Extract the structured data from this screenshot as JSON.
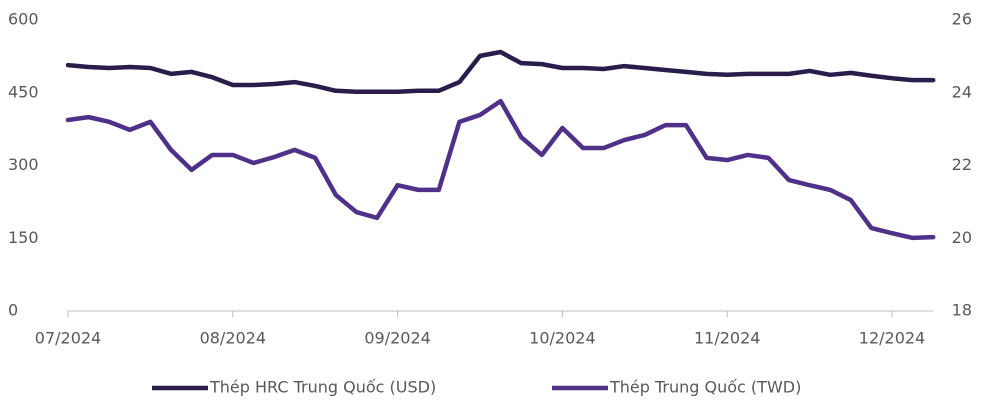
{
  "chart_data": {
    "type": "line",
    "categories": [
      "07/2024",
      null,
      null,
      null,
      null,
      null,
      null,
      null,
      "08/2024",
      null,
      null,
      null,
      null,
      null,
      null,
      null,
      "09/2024",
      null,
      null,
      null,
      null,
      null,
      null,
      null,
      "10/2024",
      null,
      null,
      null,
      null,
      null,
      null,
      null,
      "11/2024",
      null,
      null,
      null,
      null,
      null,
      null,
      null,
      "12/2024",
      null,
      null
    ],
    "series": [
      {
        "name": "Thép HRC Trung Quốc (USD)",
        "color": "#2a1d4c",
        "axis": "y",
        "values": [
          507,
          503,
          501,
          503,
          501,
          489,
          493,
          482,
          466,
          466,
          468,
          472,
          464,
          454,
          452,
          452,
          452,
          454,
          454,
          472,
          526,
          534,
          511,
          509,
          501,
          501,
          499,
          505,
          501,
          497,
          493,
          489,
          487,
          489,
          489,
          489,
          495,
          487,
          491,
          485,
          480,
          476,
          476
        ]
      },
      {
        "name": "Thép Trung Quốc (TWD)",
        "color": "#4f3189",
        "axis": "y2",
        "values": [
          23.25,
          23.33,
          23.2,
          22.98,
          23.2,
          22.43,
          21.88,
          22.29,
          22.29,
          22.07,
          22.23,
          22.43,
          22.21,
          21.19,
          20.72,
          20.56,
          21.46,
          21.33,
          21.33,
          23.2,
          23.39,
          23.77,
          22.78,
          22.29,
          23.03,
          22.48,
          22.48,
          22.7,
          22.84,
          23.11,
          23.11,
          22.21,
          22.15,
          22.29,
          22.21,
          21.6,
          21.46,
          21.33,
          21.05,
          20.28,
          20.14,
          20.01,
          20.03
        ]
      }
    ],
    "ylim": [
      0,
      600
    ],
    "yticks": [
      0,
      150,
      300,
      450,
      600
    ],
    "y2lim": [
      18,
      26
    ],
    "y2ticks": [
      18,
      20,
      22,
      24,
      26
    ],
    "legend": "bottom"
  }
}
